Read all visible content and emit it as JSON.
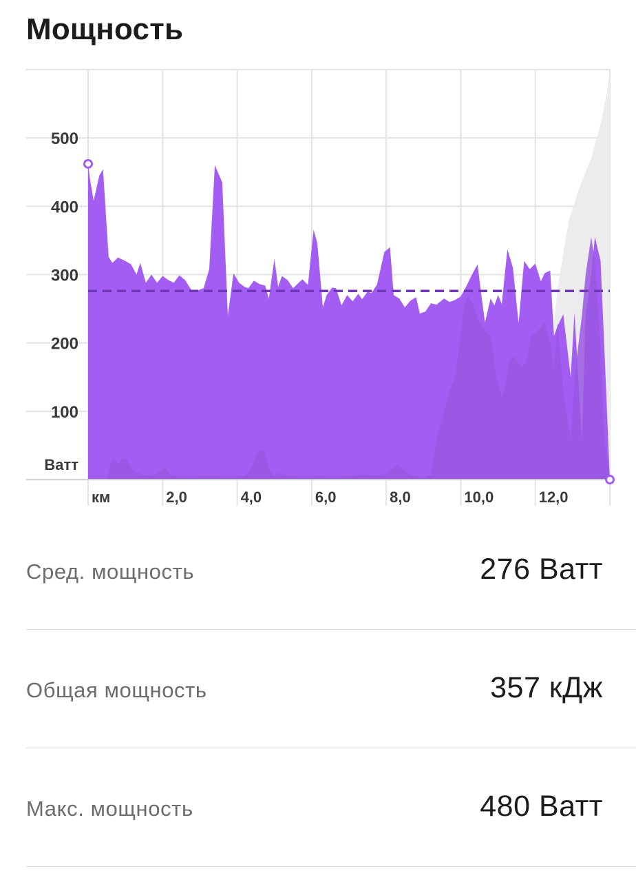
{
  "header": {
    "title": "Мощность"
  },
  "chart_data": {
    "type": "area",
    "title": "Мощность",
    "xlabel": "км",
    "ylabel": "Ватт",
    "x_tick_labels": [
      "км",
      "2,0",
      "4,0",
      "6,0",
      "8,0",
      "10,0",
      "12,0"
    ],
    "x_ticks": [
      0,
      2,
      4,
      6,
      8,
      10,
      12
    ],
    "y_tick_labels": [
      "500",
      "400",
      "300",
      "200",
      "100"
    ],
    "y_ticks": [
      500,
      400,
      300,
      200,
      100
    ],
    "xlim": [
      0,
      14.0
    ],
    "ylim": [
      0,
      600
    ],
    "grid": true,
    "average_line": 276,
    "colors": {
      "power": "#a35df2",
      "secondary": "#9a57e3",
      "average": "#7036b8",
      "elevation": "#ececee",
      "grid": "#e3e3e6",
      "axis": "#cfcfd4"
    },
    "series": [
      {
        "x": [
          0,
          0.05,
          0.15,
          0.3,
          0.4,
          0.55,
          0.65,
          0.8,
          1.0,
          1.15,
          1.3,
          1.4,
          1.55,
          1.7,
          1.85,
          2.0,
          2.15,
          2.3,
          2.45,
          2.6,
          2.8,
          2.95,
          3.1,
          3.25,
          3.4,
          3.6,
          3.75,
          3.9,
          4.05,
          4.2,
          4.3,
          4.45,
          4.6,
          4.75,
          4.85,
          5.0,
          5.1,
          5.2,
          5.35,
          5.5,
          5.65,
          5.75,
          5.9,
          6.05,
          6.15,
          6.3,
          6.4,
          6.55,
          6.65,
          6.8,
          6.95,
          7.1,
          7.25,
          7.35,
          7.5,
          7.6,
          7.75,
          7.95,
          8.1,
          8.2,
          8.35,
          8.5,
          8.65,
          8.8,
          8.9,
          9.05,
          9.2,
          9.35,
          9.55,
          9.7,
          9.85,
          10.0,
          10.15,
          10.3,
          10.45,
          10.55,
          10.65,
          10.8,
          10.9,
          11.0,
          11.1,
          11.25,
          11.4,
          11.55,
          11.7,
          11.85,
          12.0,
          12.15,
          12.25,
          12.4,
          12.5,
          12.6,
          12.75,
          12.95,
          13.05,
          13.25,
          13.35,
          13.5,
          13.6,
          13.75,
          13.85,
          14.0
        ],
        "values": [
          462,
          440,
          408,
          445,
          454,
          326,
          317,
          325,
          320,
          315,
          300,
          317,
          288,
          300,
          288,
          298,
          292,
          288,
          299,
          292,
          275,
          277,
          280,
          308,
          460,
          435,
          240,
          302,
          288,
          282,
          280,
          291,
          286,
          284,
          265,
          323,
          282,
          298,
          292,
          280,
          288,
          293,
          285,
          366,
          346,
          252,
          270,
          281,
          280,
          255,
          270,
          261,
          272,
          264,
          275,
          273,
          285,
          333,
          340,
          270,
          265,
          252,
          262,
          267,
          243,
          246,
          258,
          256,
          265,
          260,
          263,
          268,
          283,
          300,
          315,
          271,
          230,
          265,
          255,
          270,
          257,
          337,
          310,
          229,
          320,
          308,
          316,
          290,
          302,
          306,
          210,
          225,
          242,
          150,
          244,
          57,
          240,
          300,
          355,
          320,
          195,
          0
        ]
      },
      {
        "name": "secondary",
        "x": [
          0,
          0.4,
          0.5,
          0.6,
          0.7,
          0.8,
          0.9,
          1.0,
          1.1,
          1.2,
          1.35,
          1.5,
          1.7,
          1.9,
          2.05,
          2.2,
          2.4,
          2.8,
          3.2,
          3.8,
          4.2,
          4.4,
          4.55,
          4.65,
          4.75,
          4.85,
          5.0,
          5.1,
          5.2,
          5.4,
          5.6,
          5.8,
          6.2,
          6.6,
          7.0,
          7.4,
          7.8,
          8.1,
          8.3,
          8.45,
          8.6,
          8.75,
          9.0,
          9.2,
          9.35,
          9.5,
          9.7,
          9.85,
          10.0,
          10.1,
          10.2,
          10.3,
          10.4,
          10.5,
          10.6,
          10.8,
          10.95,
          11.1,
          11.2,
          11.3,
          11.45,
          11.6,
          11.75,
          11.9,
          12.1,
          12.25,
          12.4,
          12.5,
          12.6,
          12.75,
          12.95,
          13.05,
          13.25,
          13.35,
          13.5,
          13.6,
          13.75,
          13.85,
          14.0
        ],
        "values": [
          0,
          0,
          0,
          25,
          30,
          22,
          30,
          32,
          22,
          14,
          10,
          7,
          5,
          12,
          18,
          8,
          4,
          3,
          6,
          3,
          5,
          20,
          42,
          44,
          40,
          16,
          5,
          10,
          8,
          5,
          4,
          3,
          5,
          3,
          5,
          7,
          6,
          12,
          22,
          15,
          8,
          5,
          2,
          6,
          60,
          90,
          130,
          150,
          215,
          255,
          270,
          260,
          245,
          230,
          220,
          210,
          150,
          120,
          135,
          175,
          180,
          165,
          170,
          210,
          220,
          230,
          200,
          160,
          230,
          130,
          57,
          150,
          240,
          300,
          355,
          320,
          195,
          60,
          0
        ]
      },
      {
        "name": "elevation",
        "x": [
          12.0,
          12.3,
          12.6,
          12.9,
          13.2,
          13.5,
          13.75,
          13.9,
          14.0
        ],
        "values": [
          0,
          130,
          280,
          380,
          430,
          470,
          520,
          560,
          600
        ]
      }
    ]
  },
  "stats": [
    {
      "label": "Сред. мощность",
      "value": "276 Ватт"
    },
    {
      "label": "Общая мощность",
      "value": "357 кДж"
    },
    {
      "label": "Макс. мощность",
      "value": "480 Ватт"
    }
  ]
}
